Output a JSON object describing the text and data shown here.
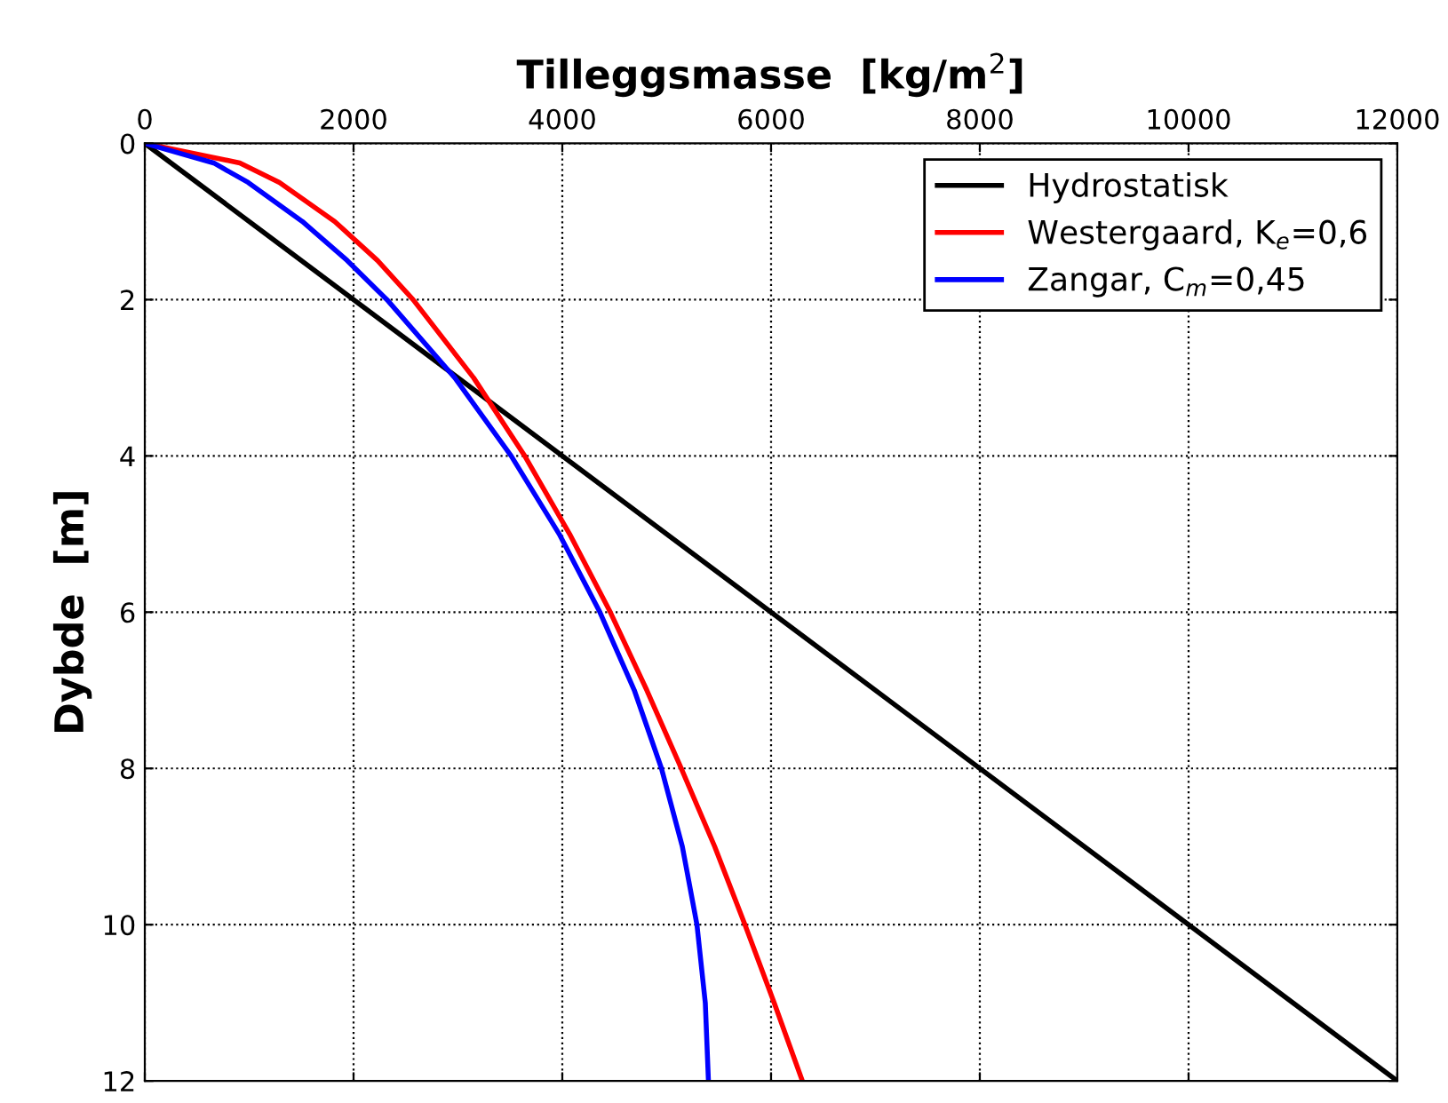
{
  "chart_data": {
    "type": "line",
    "xlabel": "Tilleggsmasse  [kg/m$^{2}$]",
    "ylabel": "Dybde  [m]",
    "xlim": [
      0,
      12000
    ],
    "xticks": [
      0,
      2000,
      4000,
      6000,
      8000,
      10000,
      12000
    ],
    "ylim": [
      12,
      0
    ],
    "yticks": [
      0,
      2,
      4,
      6,
      8,
      10,
      12
    ],
    "grid": true,
    "legend": "top right",
    "line_style": "solid",
    "series": [
      {
        "name": "Hydrostatisk",
        "color": "#000000",
        "x": [
          0,
          12000
        ],
        "values": [
          0,
          12
        ]
      },
      {
        "name": "Westergaard, K$_{e}$=0,6",
        "color": "#ff0000",
        "x": [
          0,
          910,
          1290,
          1820,
          2230,
          2570,
          3150,
          3640,
          4070,
          4460,
          4810,
          5140,
          5460,
          5750,
          6030,
          6300
        ],
        "values": [
          0,
          0.25,
          0.5,
          1,
          1.5,
          2,
          3,
          4,
          5,
          6,
          7,
          8,
          9,
          10,
          11,
          12
        ]
      },
      {
        "name": "Zangar, C$_{m}$=0,45",
        "color": "#0000ff",
        "x": [
          0,
          660,
          990,
          1510,
          1940,
          2320,
          2970,
          3510,
          3970,
          4360,
          4690,
          4950,
          5150,
          5290,
          5370,
          5400
        ],
        "values": [
          0,
          0.25,
          0.5,
          1,
          1.5,
          2,
          3,
          4,
          5,
          6,
          7,
          8,
          9,
          10,
          11,
          12
        ]
      }
    ]
  }
}
